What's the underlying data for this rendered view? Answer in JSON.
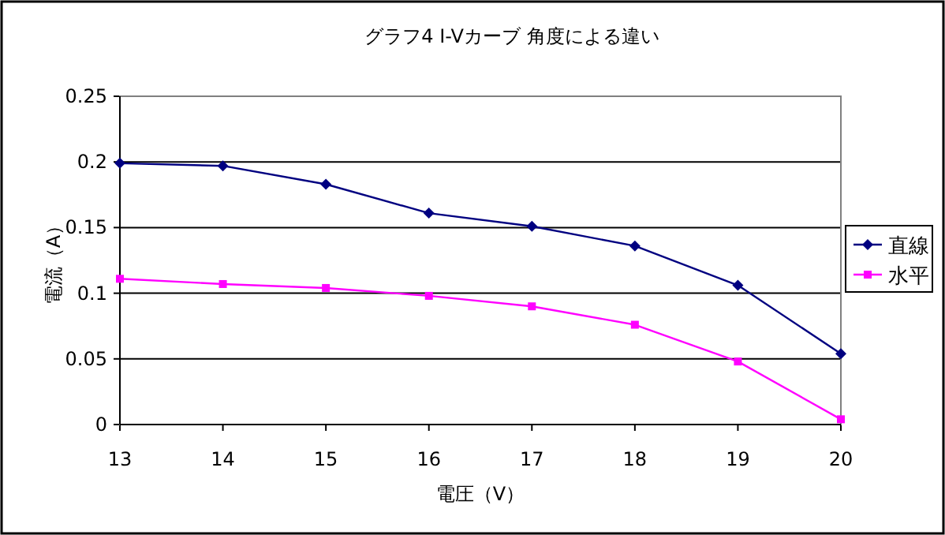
{
  "chart_data": {
    "type": "line",
    "title": "グラフ4  I-Vカーブ  角度による違い",
    "xlabel": "電圧（V）",
    "ylabel": "電流（A）",
    "x": [
      13,
      14,
      15,
      16,
      17,
      18,
      19,
      20
    ],
    "series": [
      {
        "name": "直線",
        "color": "#000080",
        "marker": "diamond",
        "values": [
          0.199,
          0.197,
          0.183,
          0.161,
          0.151,
          0.136,
          0.106,
          0.054
        ]
      },
      {
        "name": "水平",
        "color": "#ff00ff",
        "marker": "square",
        "values": [
          0.111,
          0.107,
          0.104,
          0.098,
          0.09,
          0.076,
          0.048,
          0.004
        ]
      }
    ],
    "xlim": [
      13,
      20
    ],
    "xticks": [
      13,
      14,
      15,
      16,
      17,
      18,
      19,
      20
    ],
    "ylim": [
      0,
      0.25
    ],
    "yticks": [
      0,
      0.05,
      0.1,
      0.15,
      0.2,
      0.25
    ],
    "grid": "y",
    "legend": "right",
    "line_style": "solid"
  }
}
